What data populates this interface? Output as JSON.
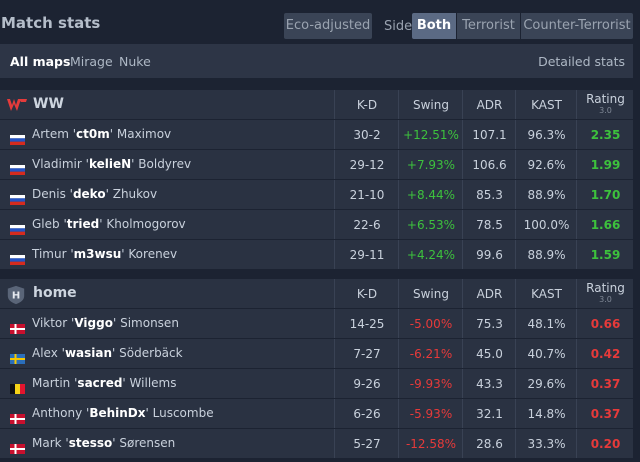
{
  "header": {
    "title": "Match stats",
    "eco_adjusted": "Eco-adjusted",
    "side_label": "Side",
    "side_options": [
      "Both",
      "Terrorist",
      "Counter-Terrorist"
    ]
  },
  "filters": {
    "maps": [
      "All maps",
      "Mirage",
      "Nuke"
    ],
    "detailed": "Detailed stats"
  },
  "columns": {
    "kd": "K-D",
    "swing": "Swing",
    "adr": "ADR",
    "kast": "KAST",
    "rating": "Rating",
    "rating_sub": "3.0"
  },
  "teams": [
    {
      "name": "WW",
      "logo": "ww-logo",
      "players": [
        {
          "first": "Artem",
          "nick": "ct0m",
          "last": "Maximov",
          "flag": "ru",
          "kd": "30-2",
          "swing": "+12.51%",
          "adr": "107.1",
          "kast": "96.3%",
          "rating": "2.35"
        },
        {
          "first": "Vladimir",
          "nick": "kelieN",
          "last": "Boldyrev",
          "flag": "ru",
          "kd": "29-12",
          "swing": "+7.93%",
          "adr": "106.6",
          "kast": "92.6%",
          "rating": "1.99"
        },
        {
          "first": "Denis",
          "nick": "deko",
          "last": "Zhukov",
          "flag": "ru",
          "kd": "21-10",
          "swing": "+8.44%",
          "adr": "85.3",
          "kast": "88.9%",
          "rating": "1.70"
        },
        {
          "first": "Gleb",
          "nick": "tried",
          "last": "Kholmogorov",
          "flag": "ru",
          "kd": "22-6",
          "swing": "+6.53%",
          "adr": "78.5",
          "kast": "100.0%",
          "rating": "1.66"
        },
        {
          "first": "Timur",
          "nick": "m3wsu",
          "last": "Korenev",
          "flag": "ru",
          "kd": "29-11",
          "swing": "+4.24%",
          "adr": "99.6",
          "kast": "88.9%",
          "rating": "1.59"
        }
      ]
    },
    {
      "name": "home",
      "logo": "home-logo",
      "players": [
        {
          "first": "Viktor",
          "nick": "Viggo",
          "last": "Simonsen",
          "flag": "dk",
          "kd": "14-25",
          "swing": "-5.00%",
          "adr": "75.3",
          "kast": "48.1%",
          "rating": "0.66"
        },
        {
          "first": "Alex",
          "nick": "wasian",
          "last": "Söderbäck",
          "flag": "se",
          "kd": "7-27",
          "swing": "-6.21%",
          "adr": "45.0",
          "kast": "40.7%",
          "rating": "0.42"
        },
        {
          "first": "Martin",
          "nick": "sacred",
          "last": "Willems",
          "flag": "be",
          "kd": "9-26",
          "swing": "-9.93%",
          "adr": "43.3",
          "kast": "29.6%",
          "rating": "0.37"
        },
        {
          "first": "Anthony",
          "nick": "BehinDx",
          "last": "Luscombe",
          "flag": "dk",
          "kd": "6-26",
          "swing": "-5.93%",
          "adr": "32.1",
          "kast": "14.8%",
          "rating": "0.37"
        },
        {
          "first": "Mark",
          "nick": "stesso",
          "last": "Sørensen",
          "flag": "dk",
          "kd": "5-27",
          "swing": "-12.58%",
          "adr": "28.6",
          "kast": "33.3%",
          "rating": "0.20"
        }
      ]
    }
  ],
  "colors": {
    "positive": "#3dc13d",
    "negative": "#e63a3a",
    "active_tab": "#5b6a84"
  }
}
